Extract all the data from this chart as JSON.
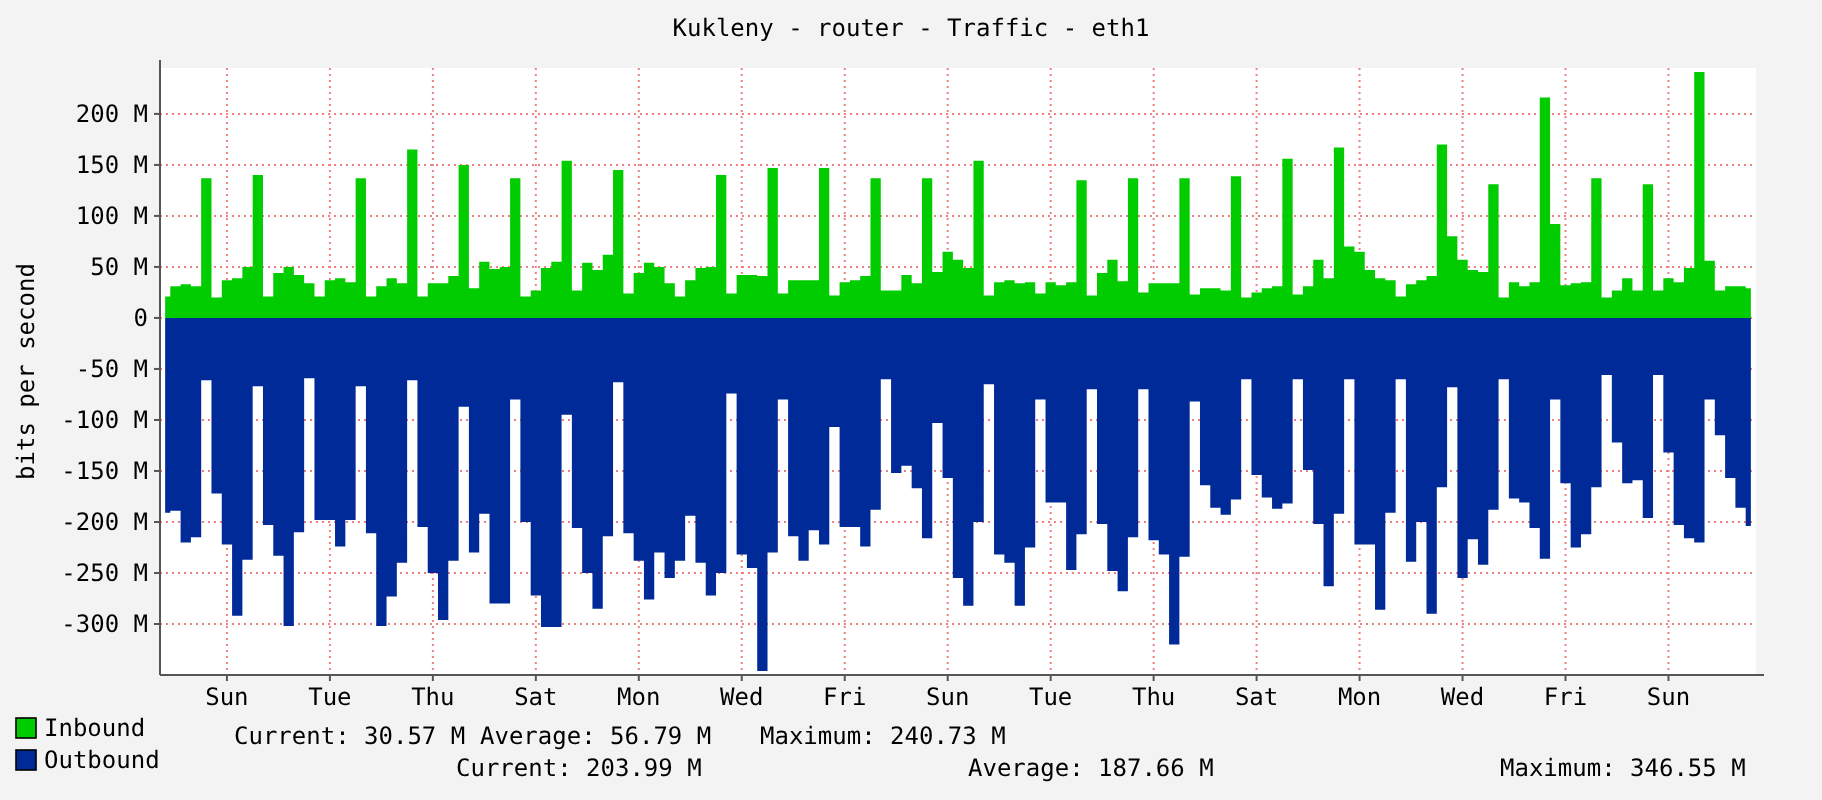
{
  "chart_data": {
    "type": "area",
    "title": "Kukleny - router - Traffic - eth1",
    "ylabel": "bits per second",
    "ylim": [
      -350,
      245
    ],
    "yticks": [
      {
        "value": -300,
        "label": "-300 M"
      },
      {
        "value": -250,
        "label": "-250 M"
      },
      {
        "value": -200,
        "label": "-200 M"
      },
      {
        "value": -150,
        "label": "-150 M"
      },
      {
        "value": -100,
        "label": "-100 M"
      },
      {
        "value": -50,
        "label": "-50 M"
      },
      0,
      {
        "value": 50,
        "label": "50 M"
      },
      {
        "value": 100,
        "label": "100 M"
      },
      {
        "value": 150,
        "label": "150 M"
      },
      {
        "value": 200,
        "label": "200 M"
      }
    ],
    "grid": true,
    "legend": "bottom",
    "annotations": [
      "Current: 30.57 M",
      "Average: 56.79 M",
      "Maximum: 240.73 M",
      "Current: 203.99 M",
      "Average: 187.66 M",
      "Maximum: 346.55 M"
    ],
    "categories": [
      null,
      null,
      null,
      null,
      null,
      null,
      "Sun",
      null,
      null,
      null,
      null,
      null,
      null,
      null,
      null,
      null,
      "Tue",
      null,
      null,
      null,
      null,
      null,
      null,
      null,
      null,
      null,
      "Thu",
      null,
      null,
      null,
      null,
      null,
      null,
      null,
      null,
      null,
      "Sat",
      null,
      null,
      null,
      null,
      null,
      null,
      null,
      null,
      null,
      "Mon",
      null,
      null,
      null,
      null,
      null,
      null,
      null,
      null,
      null,
      "Wed",
      null,
      null,
      null,
      null,
      null,
      null,
      null,
      null,
      null,
      "Fri",
      null,
      null,
      null,
      null,
      null,
      null,
      null,
      null,
      null,
      "Sun",
      null,
      null,
      null,
      null,
      null,
      null,
      null,
      null,
      null,
      "Tue",
      null,
      null,
      null,
      null,
      null,
      null,
      null,
      null,
      null,
      "Thu",
      null,
      null,
      null,
      null,
      null,
      null,
      null,
      null,
      null,
      "Sat",
      null,
      null,
      null,
      null,
      null,
      null,
      null,
      null,
      null,
      "Mon",
      null,
      null,
      null,
      null,
      null,
      null,
      null,
      null,
      null,
      "Wed",
      null,
      null,
      null,
      null,
      null,
      null,
      null,
      null,
      null,
      "Fri",
      null,
      null,
      null,
      null,
      null,
      null,
      null,
      null,
      null,
      "Sun",
      null,
      null,
      null,
      null,
      null,
      null,
      null,
      null
    ],
    "series": [
      {
        "name": "Inbound",
        "color": "#00cc00",
        "values": [
          21,
          31,
          33,
          31,
          137,
          20,
          37,
          39,
          50,
          140,
          21,
          44,
          50,
          42,
          34,
          21,
          37,
          39,
          35,
          137,
          21,
          31,
          39,
          34,
          165,
          21,
          34,
          34,
          41,
          150,
          29,
          55,
          48,
          50,
          137,
          21,
          27,
          49,
          55,
          154,
          27,
          54,
          47,
          62,
          145,
          24,
          44,
          54,
          50,
          34,
          21,
          37,
          49,
          50,
          140,
          24,
          42,
          42,
          41,
          147,
          24,
          37,
          37,
          37,
          147,
          22,
          35,
          37,
          41,
          137,
          27,
          27,
          42,
          34,
          137,
          45,
          65,
          57,
          49,
          154,
          22,
          35,
          37,
          34,
          35,
          24,
          35,
          32,
          35,
          135,
          22,
          44,
          57,
          36,
          137,
          25,
          34,
          34,
          34,
          137,
          23,
          29,
          29,
          27,
          139,
          20,
          25,
          29,
          31,
          156,
          23,
          31,
          57,
          39,
          167,
          70,
          65,
          47,
          39,
          37,
          21,
          33,
          37,
          41,
          170,
          80,
          57,
          47,
          45,
          131,
          20,
          35,
          31,
          35,
          216,
          92,
          32,
          34,
          35,
          137,
          20,
          27,
          39,
          27,
          131,
          27,
          39,
          35,
          49,
          241,
          56,
          27,
          31,
          31,
          29
        ]
      },
      {
        "name": "Outbound",
        "color": "#002a97",
        "values": [
          -191,
          -189,
          -220,
          -215,
          -61,
          -172,
          -222,
          -292,
          -237,
          -67,
          -203,
          -233,
          -302,
          -210,
          -59,
          -198,
          -198,
          -224,
          -198,
          -67,
          -211,
          -302,
          -273,
          -240,
          -61,
          -205,
          -250,
          -296,
          -238,
          -87,
          -230,
          -192,
          -280,
          -280,
          -80,
          -200,
          -272,
          -303,
          -303,
          -95,
          -206,
          -250,
          -285,
          -214,
          -63,
          -211,
          -238,
          -276,
          -230,
          -255,
          -238,
          -194,
          -240,
          -272,
          -250,
          -74,
          -232,
          -245,
          -346,
          -230,
          -80,
          -214,
          -238,
          -208,
          -222,
          -107,
          -205,
          -205,
          -224,
          -188,
          -60,
          -152,
          -145,
          -167,
          -216,
          -103,
          -157,
          -255,
          -282,
          -200,
          -65,
          -232,
          -240,
          -282,
          -225,
          -80,
          -181,
          -181,
          -247,
          -212,
          -70,
          -202,
          -248,
          -268,
          -215,
          -70,
          -218,
          -232,
          -320,
          -234,
          -82,
          -164,
          -186,
          -193,
          -178,
          -60,
          -154,
          -176,
          -187,
          -182,
          -60,
          -149,
          -202,
          -263,
          -192,
          -60,
          -222,
          -222,
          -286,
          -191,
          -60,
          -239,
          -200,
          -290,
          -166,
          -68,
          -255,
          -217,
          -242,
          -188,
          -60,
          -177,
          -181,
          -206,
          -236,
          -80,
          -162,
          -225,
          -212,
          -166,
          -56,
          -122,
          -162,
          -159,
          -196,
          -56,
          -132,
          -203,
          -216,
          -220,
          -80,
          -115,
          -157,
          -186,
          -204
        ]
      }
    ]
  }
}
